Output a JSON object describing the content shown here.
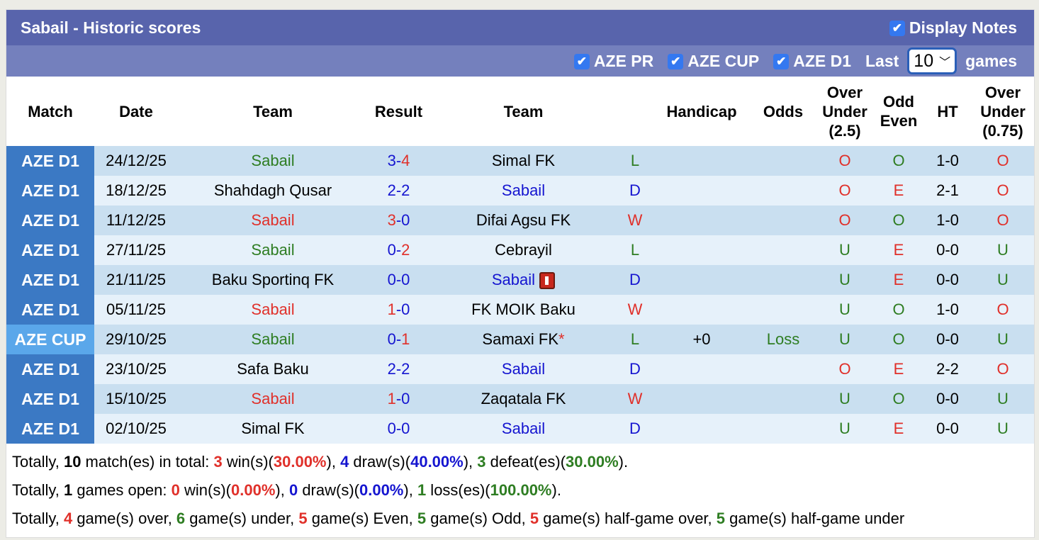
{
  "title": "Sabail - Historic scores",
  "display_notes": "Display Notes",
  "filters": [
    {
      "label": "AZE PR",
      "checked": true
    },
    {
      "label": "AZE CUP",
      "checked": true
    },
    {
      "label": "AZE D1",
      "checked": true
    }
  ],
  "last_label": "Last",
  "last_value": "10",
  "games_label": "games",
  "headers": [
    "Match",
    "Date",
    "Team",
    "Result",
    "Team",
    "",
    "Handicap",
    "Odds",
    "Over Under (2.5)",
    "Odd Even",
    "HT",
    "Over Under (0.75)"
  ],
  "colors": {
    "green": "#2e7d22",
    "red": "#e0302a",
    "blue": "#1515d0",
    "comp": "#3b79c4",
    "cup": "#5aa7ea"
  },
  "rows": [
    {
      "comp": "AZE D1",
      "date": "24/12/25",
      "home": "Sabail",
      "hc": "g",
      "sh": "3",
      "shc": "b",
      "sa": "4",
      "sac": "r",
      "away": "Simal FK",
      "ac": "k",
      "res": "L",
      "rc": "g",
      "hcap": "",
      "odds": "",
      "ou": "O",
      "oe": "O",
      "ht": "1-0",
      "ou2": "O"
    },
    {
      "comp": "AZE D1",
      "date": "18/12/25",
      "home": "Shahdagh Qusar",
      "hc": "k",
      "sh": "2",
      "shc": "b",
      "sa": "2",
      "sac": "b",
      "away": "Sabail",
      "ac": "b",
      "res": "D",
      "rc": "b",
      "hcap": "",
      "odds": "",
      "ou": "O",
      "oe": "E",
      "ht": "2-1",
      "ou2": "O"
    },
    {
      "comp": "AZE D1",
      "date": "11/12/25",
      "home": "Sabail",
      "hc": "r",
      "sh": "3",
      "shc": "r",
      "sa": "0",
      "sac": "b",
      "away": "Difai Agsu FK",
      "ac": "k",
      "res": "W",
      "rc": "r",
      "hcap": "",
      "odds": "",
      "ou": "O",
      "oe": "O",
      "ht": "1-0",
      "ou2": "O"
    },
    {
      "comp": "AZE D1",
      "date": "27/11/25",
      "home": "Sabail",
      "hc": "g",
      "sh": "0",
      "shc": "b",
      "sa": "2",
      "sac": "r",
      "away": "Cebrayil",
      "ac": "k",
      "res": "L",
      "rc": "g",
      "hcap": "",
      "odds": "",
      "ou": "U",
      "oe": "E",
      "ht": "0-0",
      "ou2": "U"
    },
    {
      "comp": "AZE D1",
      "date": "21/11/25",
      "home": "Baku Sportinq FK",
      "hc": "k",
      "sh": "0",
      "shc": "b",
      "sa": "0",
      "sac": "b",
      "away": "Sabail",
      "ac": "b",
      "card": true,
      "res": "D",
      "rc": "b",
      "hcap": "",
      "odds": "",
      "ou": "U",
      "oe": "E",
      "ht": "0-0",
      "ou2": "U"
    },
    {
      "comp": "AZE D1",
      "date": "05/11/25",
      "home": "Sabail",
      "hc": "r",
      "sh": "1",
      "shc": "r",
      "sa": "0",
      "sac": "b",
      "away": "FK MOIK Baku",
      "ac": "k",
      "res": "W",
      "rc": "r",
      "hcap": "",
      "odds": "",
      "ou": "U",
      "oe": "O",
      "ht": "1-0",
      "ou2": "O"
    },
    {
      "comp": "AZE CUP",
      "cup": true,
      "date": "29/10/25",
      "home": "Sabail",
      "hc": "g",
      "sh": "0",
      "shc": "b",
      "sa": "1",
      "sac": "r",
      "away": "Samaxi FK",
      "ac": "k",
      "star": "*",
      "res": "L",
      "rc": "g",
      "hcap": "+0",
      "odds": "Loss",
      "ou": "U",
      "oe": "O",
      "ht": "0-0",
      "ou2": "U"
    },
    {
      "comp": "AZE D1",
      "date": "23/10/25",
      "home": "Safa Baku",
      "hc": "k",
      "sh": "2",
      "shc": "b",
      "sa": "2",
      "sac": "b",
      "away": "Sabail",
      "ac": "b",
      "res": "D",
      "rc": "b",
      "hcap": "",
      "odds": "",
      "ou": "O",
      "oe": "E",
      "ht": "2-2",
      "ou2": "O"
    },
    {
      "comp": "AZE D1",
      "date": "15/10/25",
      "home": "Sabail",
      "hc": "r",
      "sh": "1",
      "shc": "r",
      "sa": "0",
      "sac": "b",
      "away": "Zaqatala FK",
      "ac": "k",
      "res": "W",
      "rc": "r",
      "hcap": "",
      "odds": "",
      "ou": "U",
      "oe": "O",
      "ht": "0-0",
      "ou2": "U"
    },
    {
      "comp": "AZE D1",
      "date": "02/10/25",
      "home": "Simal FK",
      "hc": "k",
      "sh": "0",
      "shc": "b",
      "sa": "0",
      "sac": "b",
      "away": "Sabail",
      "ac": "b",
      "res": "D",
      "rc": "b",
      "hcap": "",
      "odds": "",
      "ou": "U",
      "oe": "E",
      "ht": "0-0",
      "ou2": "U"
    }
  ],
  "summary": [
    [
      [
        "Totally, ",
        "k"
      ],
      [
        "10",
        "kb"
      ],
      [
        " match(es) in total: ",
        "k"
      ],
      [
        "3",
        "r"
      ],
      [
        " win(s)(",
        "k"
      ],
      [
        "30.00%",
        "r"
      ],
      [
        "), ",
        "k"
      ],
      [
        "4",
        "b"
      ],
      [
        " draw(s)(",
        "k"
      ],
      [
        "40.00%",
        "b"
      ],
      [
        "), ",
        "k"
      ],
      [
        "3",
        "g"
      ],
      [
        " defeat(es)(",
        "k"
      ],
      [
        "30.00%",
        "g"
      ],
      [
        ").",
        "k"
      ]
    ],
    [
      [
        "Totally, ",
        "k"
      ],
      [
        "1",
        "kb"
      ],
      [
        " games open: ",
        "k"
      ],
      [
        "0",
        "r"
      ],
      [
        " win(s)(",
        "k"
      ],
      [
        "0.00%",
        "r"
      ],
      [
        "), ",
        "k"
      ],
      [
        "0",
        "b"
      ],
      [
        " draw(s)(",
        "k"
      ],
      [
        "0.00%",
        "b"
      ],
      [
        "), ",
        "k"
      ],
      [
        "1",
        "g"
      ],
      [
        " loss(es)(",
        "k"
      ],
      [
        "100.00%",
        "g"
      ],
      [
        ").",
        "k"
      ]
    ],
    [
      [
        "Totally, ",
        "k"
      ],
      [
        "4",
        "r"
      ],
      [
        " game(s) over, ",
        "k"
      ],
      [
        "6",
        "g"
      ],
      [
        " game(s) under, ",
        "k"
      ],
      [
        "5",
        "r"
      ],
      [
        " game(s) Even, ",
        "k"
      ],
      [
        "5",
        "g"
      ],
      [
        " game(s) Odd, ",
        "k"
      ],
      [
        "5",
        "r"
      ],
      [
        " game(s) half-game over, ",
        "k"
      ],
      [
        "5",
        "g"
      ],
      [
        " game(s) half-game under",
        "k"
      ]
    ]
  ]
}
